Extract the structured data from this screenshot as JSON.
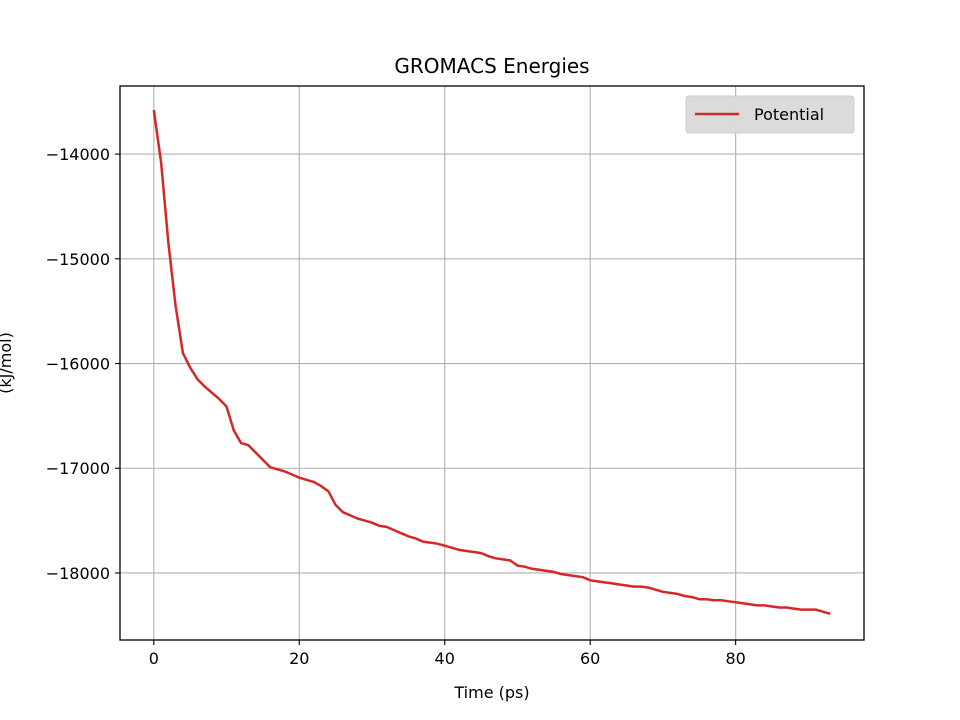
{
  "chart_data": {
    "type": "line",
    "title": "GROMACS Energies",
    "xlabel": "Time (ps)",
    "ylabel": "(kJ/mol)",
    "xlim": [
      -4.65,
      97.65
    ],
    "ylim": [
      -18640,
      -13350
    ],
    "xticks": [
      0,
      20,
      40,
      60,
      80
    ],
    "yticks": [
      -14000,
      -15000,
      -16000,
      -17000,
      -18000
    ],
    "xtick_labels": [
      "0",
      "20",
      "40",
      "60",
      "80"
    ],
    "ytick_labels": [
      "−14000",
      "−15000",
      "−16000",
      "−17000",
      "−18000"
    ],
    "grid": true,
    "legend_position": "top-right",
    "series": [
      {
        "name": "Potential",
        "color": "#d62728",
        "x": [
          0,
          1,
          2,
          3,
          4,
          5,
          6,
          7,
          8,
          9,
          10,
          11,
          12,
          13,
          14,
          15,
          16,
          17,
          18,
          19,
          20,
          21,
          22,
          23,
          24,
          25,
          26,
          27,
          28,
          29,
          30,
          31,
          32,
          33,
          34,
          35,
          36,
          37,
          38,
          39,
          40,
          41,
          42,
          43,
          44,
          45,
          46,
          47,
          48,
          49,
          50,
          51,
          52,
          53,
          54,
          55,
          56,
          57,
          58,
          59,
          60,
          61,
          62,
          63,
          64,
          65,
          66,
          67,
          68,
          69,
          70,
          71,
          72,
          73,
          74,
          75,
          76,
          77,
          78,
          79,
          80,
          81,
          82,
          83,
          84,
          85,
          86,
          87,
          88,
          89,
          90,
          91,
          92,
          93
        ],
        "y": [
          -13580,
          -14080,
          -14850,
          -15450,
          -15900,
          -16040,
          -16150,
          -16220,
          -16280,
          -16340,
          -16410,
          -16640,
          -16760,
          -16780,
          -16850,
          -16920,
          -16990,
          -17010,
          -17030,
          -17060,
          -17090,
          -17110,
          -17130,
          -17170,
          -17220,
          -17350,
          -17420,
          -17450,
          -17480,
          -17500,
          -17520,
          -17550,
          -17560,
          -17590,
          -17620,
          -17650,
          -17670,
          -17700,
          -17710,
          -17720,
          -17740,
          -17760,
          -17780,
          -17790,
          -17800,
          -17810,
          -17840,
          -17860,
          -17870,
          -17880,
          -17930,
          -17940,
          -17960,
          -17970,
          -17980,
          -17990,
          -18010,
          -18020,
          -18030,
          -18040,
          -18070,
          -18080,
          -18090,
          -18100,
          -18110,
          -18120,
          -18130,
          -18130,
          -18140,
          -18160,
          -18180,
          -18190,
          -18200,
          -18220,
          -18230,
          -18250,
          -18250,
          -18260,
          -18260,
          -18270,
          -18280,
          -18290,
          -18300,
          -18310,
          -18310,
          -18320,
          -18330,
          -18330,
          -18340,
          -18350,
          -18350,
          -18350,
          -18370,
          -18390
        ]
      }
    ]
  }
}
